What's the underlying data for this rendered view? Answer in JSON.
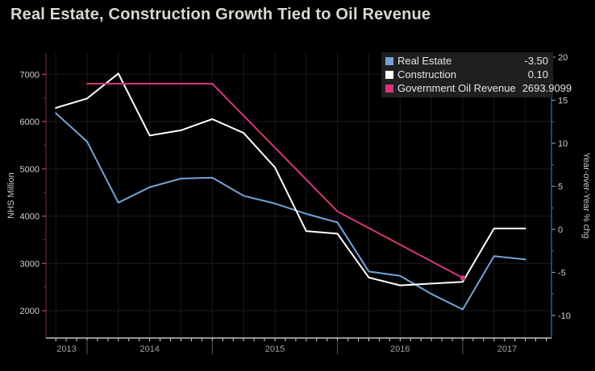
{
  "chart_data": {
    "type": "line",
    "title": "Real Estate, Construction Growth Tied to Oil Revenue",
    "x_axis": {
      "tick_years": [
        2013,
        2014,
        2015,
        2016,
        2017
      ],
      "range": [
        2013.6716,
        2017.7086
      ],
      "minor_tick_unit": "month"
    },
    "left_axis": {
      "label": "NHS Million",
      "ticks": [
        2000,
        3000,
        4000,
        5000,
        6000,
        7000
      ],
      "minor_step": 500,
      "tick_color": "#c2407c",
      "minor_tick_color": "#8a2a55",
      "line_color": "#5a1b34"
    },
    "right_axis": {
      "label": "Year-over-Year % chg",
      "ticks": [
        -10,
        -5,
        0,
        5,
        10,
        15,
        20
      ],
      "minor_step": 2.5,
      "tick_color": "#5c94c8",
      "minor_tick_color": "#3c6d9e",
      "line_color": "#2e5e92"
    },
    "grid": {
      "show": true,
      "color": "#171d24"
    },
    "series": [
      {
        "name": "Real Estate",
        "axis": "right",
        "color": "#74a3d4",
        "last_value": "-3.50",
        "x": [
          2013.75,
          2014.0,
          2014.25,
          2014.5,
          2014.75,
          2015.0,
          2015.25,
          2015.5,
          2015.75,
          2016.0,
          2016.25,
          2016.5,
          2016.75,
          2017.0,
          2017.25,
          2017.5
        ],
        "values": [
          13.5,
          10.2,
          3.1,
          4.9,
          5.9,
          6.0,
          3.9,
          3.0,
          1.8,
          0.8,
          -4.9,
          -5.4,
          -7.5,
          -9.3,
          -3.1,
          -3.5
        ]
      },
      {
        "name": "Construction",
        "axis": "right",
        "color": "#ffffff",
        "last_value": "0.10",
        "x": [
          2013.75,
          2014.0,
          2014.25,
          2014.5,
          2014.75,
          2015.0,
          2015.25,
          2015.5,
          2015.75,
          2016.0,
          2016.25,
          2016.5,
          2016.75,
          2017.0,
          2017.25,
          2017.5
        ],
        "values": [
          14.1,
          15.2,
          18.1,
          10.9,
          11.5,
          12.8,
          11.2,
          7.2,
          -0.2,
          -0.5,
          -5.6,
          -6.5,
          -6.3,
          -6.1,
          0.1,
          0.1
        ]
      },
      {
        "name": "Government Oil Revenue",
        "axis": "left",
        "color": "#d5367d",
        "last_value": "2693.9099",
        "x": [
          2014.0,
          2015.0,
          2016.0,
          2017.0
        ],
        "values": [
          6800,
          6800,
          4100,
          2693.9099
        ],
        "end_dot": true
      }
    ],
    "text_colors": {
      "title": "#dcd8d0",
      "tick_labels": "#cfcfcf",
      "year_labels": "#a5a09a",
      "axis_titles": "#c9c9c9"
    }
  }
}
